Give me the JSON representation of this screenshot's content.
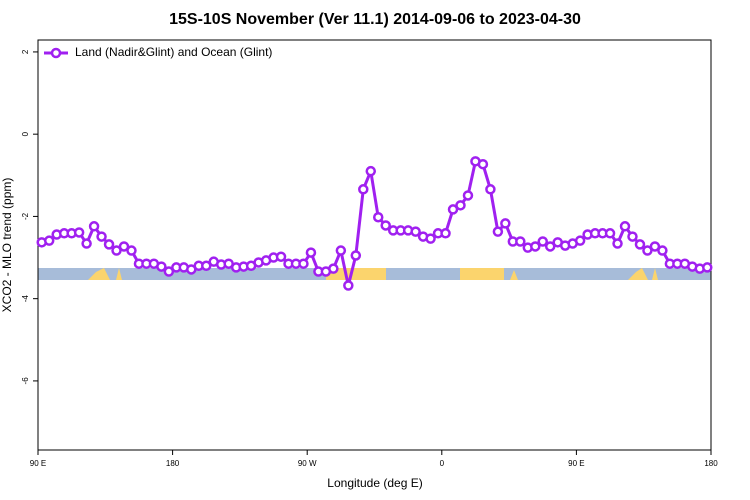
{
  "chart_data": {
    "type": "line",
    "title": "15S-10S November (Ver 11.1)   2014-09-06 to 2023-04-30",
    "x_label": "Longitude (deg E)",
    "y_label": "XCO2 - MLO trend (ppm)",
    "legend_position": "upper left",
    "xlim": [
      90,
      540
    ],
    "xticks": [
      {
        "value": 90,
        "label": "90 E"
      },
      180,
      {
        "value": 270,
        "label": "90 W"
      },
      {
        "value": 360,
        "label": "0"
      },
      {
        "value": 450,
        "label": "90 E"
      },
      {
        "value": 540,
        "label": "180"
      }
    ],
    "ylim": [
      -7.68,
      2.29
    ],
    "yticks": [
      2,
      0,
      -2,
      -4,
      -6
    ],
    "x": [
      92.5,
      97.5,
      102.5,
      107.5,
      112.5,
      117.5,
      122.5,
      127.5,
      132.5,
      137.5,
      142.5,
      147.5,
      152.5,
      157.5,
      162.5,
      167.5,
      172.5,
      177.5,
      182.5,
      187.5,
      192.5,
      197.5,
      202.5,
      207.5,
      212.5,
      217.5,
      222.5,
      227.5,
      232.5,
      237.5,
      242.5,
      247.5,
      252.5,
      257.5,
      262.5,
      267.5,
      272.5,
      277.5,
      282.5,
      287.5,
      292.5,
      297.5,
      302.5,
      307.5,
      312.5,
      317.5,
      322.5,
      327.5,
      332.5,
      337.5,
      342.5,
      347.5,
      352.5,
      357.5,
      362.5,
      367.5,
      372.5,
      377.5,
      382.5,
      387.5,
      392.5,
      397.5,
      402.5,
      407.5,
      412.5,
      417.5,
      422.5,
      427.5,
      432.5,
      437.5,
      442.5,
      447.5,
      452.5,
      457.5,
      462.5,
      467.5,
      472.5,
      477.5,
      482.5,
      487.5,
      492.5,
      497.5,
      502.5,
      507.5,
      512.5,
      517.5,
      522.5,
      527.5,
      532.5,
      537.5
    ],
    "series": [
      {
        "name": "Land (Nadir&Glint) and Ocean (Glint)",
        "color": "#a020f0",
        "values": [
          -2.63,
          -2.59,
          -2.44,
          -2.41,
          -2.41,
          -2.39,
          -2.66,
          -2.24,
          -2.49,
          -2.68,
          -2.83,
          -2.73,
          -2.83,
          -3.15,
          -3.15,
          -3.15,
          -3.22,
          -3.34,
          -3.24,
          -3.24,
          -3.29,
          -3.2,
          -3.2,
          -3.1,
          -3.17,
          -3.15,
          -3.24,
          -3.22,
          -3.2,
          -3.12,
          -3.07,
          -3.0,
          -2.98,
          -3.15,
          -3.15,
          -3.15,
          -2.88,
          -3.34,
          -3.34,
          -3.27,
          -2.83,
          -3.68,
          -2.95,
          -1.34,
          -0.9,
          -2.02,
          -2.22,
          -2.34,
          -2.34,
          -2.34,
          -2.37,
          -2.49,
          -2.54,
          -2.41,
          -2.41,
          -1.83,
          -1.73,
          -1.49,
          -0.66,
          -0.73,
          -1.34,
          -2.37,
          -2.17,
          -2.61,
          -2.61,
          -2.76,
          -2.73,
          -2.61,
          -2.73,
          -2.63,
          -2.71,
          -2.66,
          -2.59,
          -2.44,
          -2.41,
          -2.41,
          -2.41,
          -2.66,
          -2.24,
          -2.49,
          -2.68,
          -2.83,
          -2.73,
          -2.83,
          -3.15,
          -3.15,
          -3.15,
          -3.22,
          -3.27,
          -3.24
        ]
      }
    ]
  }
}
